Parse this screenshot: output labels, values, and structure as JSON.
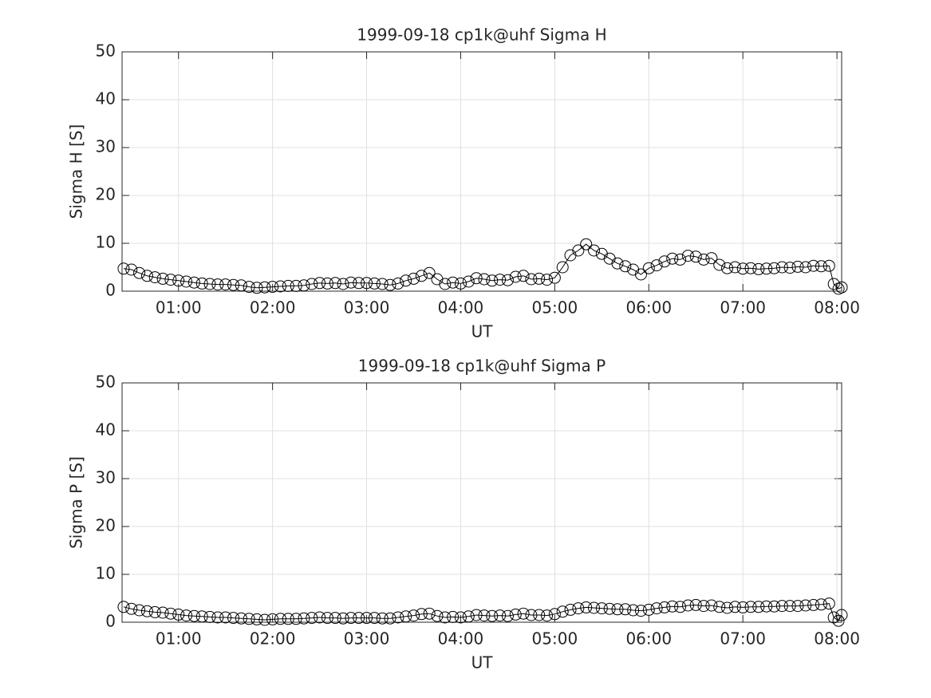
{
  "chart_data": [
    {
      "type": "line",
      "title": "1999-09-18  cp1k@uhf Sigma H",
      "xlabel": "UT",
      "ylabel": "Sigma H [S]",
      "x": [
        "00:25",
        "00:30",
        "00:35",
        "00:40",
        "00:45",
        "00:50",
        "00:55",
        "01:00",
        "01:05",
        "01:10",
        "01:15",
        "01:20",
        "01:25",
        "01:30",
        "01:35",
        "01:40",
        "01:45",
        "01:50",
        "01:55",
        "02:00",
        "02:05",
        "02:10",
        "02:15",
        "02:20",
        "02:25",
        "02:30",
        "02:35",
        "02:40",
        "02:45",
        "02:50",
        "02:55",
        "03:00",
        "03:05",
        "03:10",
        "03:15",
        "03:20",
        "03:25",
        "03:30",
        "03:35",
        "03:40",
        "03:45",
        "03:50",
        "03:55",
        "04:00",
        "04:05",
        "04:10",
        "04:15",
        "04:20",
        "04:25",
        "04:30",
        "04:35",
        "04:40",
        "04:45",
        "04:50",
        "04:55",
        "05:00",
        "05:05",
        "05:10",
        "05:15",
        "05:20",
        "05:25",
        "05:30",
        "05:35",
        "05:40",
        "05:45",
        "05:50",
        "05:55",
        "06:00",
        "06:05",
        "06:10",
        "06:15",
        "06:20",
        "06:25",
        "06:30",
        "06:35",
        "06:40",
        "06:45",
        "06:50",
        "06:55",
        "07:00",
        "07:05",
        "07:10",
        "07:15",
        "07:20",
        "07:25",
        "07:30",
        "07:35",
        "07:40",
        "07:45",
        "07:50",
        "07:55",
        "07:58",
        "08:01",
        "08:03"
      ],
      "values": [
        4.7,
        4.5,
        3.8,
        3.2,
        2.9,
        2.6,
        2.4,
        2.2,
        2.0,
        1.8,
        1.6,
        1.5,
        1.4,
        1.4,
        1.3,
        1.2,
        0.9,
        0.7,
        0.8,
        0.9,
        1.0,
        1.1,
        1.1,
        1.2,
        1.5,
        1.7,
        1.6,
        1.7,
        1.5,
        1.8,
        1.7,
        1.7,
        1.6,
        1.5,
        1.3,
        1.6,
        2.2,
        2.6,
        3.2,
        3.8,
        2.5,
        1.5,
        1.8,
        1.6,
        2.0,
        2.7,
        2.5,
        2.2,
        2.4,
        2.3,
        3.0,
        3.2,
        2.5,
        2.6,
        2.4,
        2.8,
        5.0,
        7.5,
        8.5,
        9.8,
        8.5,
        7.8,
        6.8,
        5.8,
        5.2,
        4.5,
        3.5,
        4.8,
        5.4,
        6.2,
        6.8,
        6.6,
        7.4,
        7.2,
        6.6,
        6.9,
        5.5,
        4.8,
        5.0,
        4.7,
        4.8,
        4.6,
        4.7,
        4.8,
        5.0,
        4.9,
        5.1,
        5.0,
        5.3,
        5.2,
        5.3,
        1.5,
        0.5,
        0.8
      ],
      "color": "#000000",
      "marker": "circle",
      "xlim": [
        "00:24",
        "08:03"
      ],
      "xticks": [
        "01:00",
        "02:00",
        "03:00",
        "04:00",
        "05:00",
        "06:00",
        "07:00",
        "08:00"
      ],
      "ylim": [
        0,
        50
      ],
      "yticks": [
        0,
        10,
        20,
        30,
        40,
        50
      ],
      "grid": true
    },
    {
      "type": "line",
      "title": "1999-09-18  cp1k@uhf Sigma P",
      "xlabel": "UT",
      "ylabel": "Sigma P [S]",
      "x": [
        "00:25",
        "00:30",
        "00:35",
        "00:40",
        "00:45",
        "00:50",
        "00:55",
        "01:00",
        "01:05",
        "01:10",
        "01:15",
        "01:20",
        "01:25",
        "01:30",
        "01:35",
        "01:40",
        "01:45",
        "01:50",
        "01:55",
        "02:00",
        "02:05",
        "02:10",
        "02:15",
        "02:20",
        "02:25",
        "02:30",
        "02:35",
        "02:40",
        "02:45",
        "02:50",
        "02:55",
        "03:00",
        "03:05",
        "03:10",
        "03:15",
        "03:20",
        "03:25",
        "03:30",
        "03:35",
        "03:40",
        "03:45",
        "03:50",
        "03:55",
        "04:00",
        "04:05",
        "04:10",
        "04:15",
        "04:20",
        "04:25",
        "04:30",
        "04:35",
        "04:40",
        "04:45",
        "04:50",
        "04:55",
        "05:00",
        "05:05",
        "05:10",
        "05:15",
        "05:20",
        "05:25",
        "05:30",
        "05:35",
        "05:40",
        "05:45",
        "05:50",
        "05:55",
        "06:00",
        "06:05",
        "06:10",
        "06:15",
        "06:20",
        "06:25",
        "06:30",
        "06:35",
        "06:40",
        "06:45",
        "06:50",
        "06:55",
        "07:00",
        "07:05",
        "07:10",
        "07:15",
        "07:20",
        "07:25",
        "07:30",
        "07:35",
        "07:40",
        "07:45",
        "07:50",
        "07:55",
        "07:58",
        "08:01",
        "08:03"
      ],
      "values": [
        3.2,
        2.8,
        2.5,
        2.3,
        2.1,
        2.0,
        1.8,
        1.6,
        1.4,
        1.3,
        1.2,
        1.1,
        1.0,
        1.0,
        0.9,
        0.8,
        0.7,
        0.6,
        0.5,
        0.6,
        0.7,
        0.7,
        0.7,
        0.8,
        0.9,
        1.0,
        0.9,
        0.9,
        0.8,
        0.9,
        0.9,
        0.9,
        0.9,
        0.8,
        0.8,
        1.0,
        1.2,
        1.4,
        1.7,
        1.8,
        1.3,
        1.0,
        1.1,
        1.0,
        1.2,
        1.5,
        1.4,
        1.3,
        1.4,
        1.3,
        1.6,
        1.8,
        1.5,
        1.5,
        1.4,
        1.7,
        2.2,
        2.6,
        2.9,
        3.1,
        3.0,
        2.9,
        2.8,
        2.7,
        2.7,
        2.5,
        2.4,
        2.6,
        2.9,
        3.1,
        3.3,
        3.2,
        3.5,
        3.6,
        3.4,
        3.5,
        3.2,
        3.0,
        3.2,
        3.1,
        3.2,
        3.2,
        3.3,
        3.3,
        3.4,
        3.4,
        3.4,
        3.5,
        3.6,
        3.7,
        3.9,
        1.0,
        0.3,
        1.5
      ],
      "color": "#000000",
      "marker": "circle",
      "xlim": [
        "00:24",
        "08:03"
      ],
      "xticks": [
        "01:00",
        "02:00",
        "03:00",
        "04:00",
        "05:00",
        "06:00",
        "07:00",
        "08:00"
      ],
      "ylim": [
        0,
        50
      ],
      "yticks": [
        0,
        10,
        20,
        30,
        40,
        50
      ],
      "grid": true
    }
  ]
}
